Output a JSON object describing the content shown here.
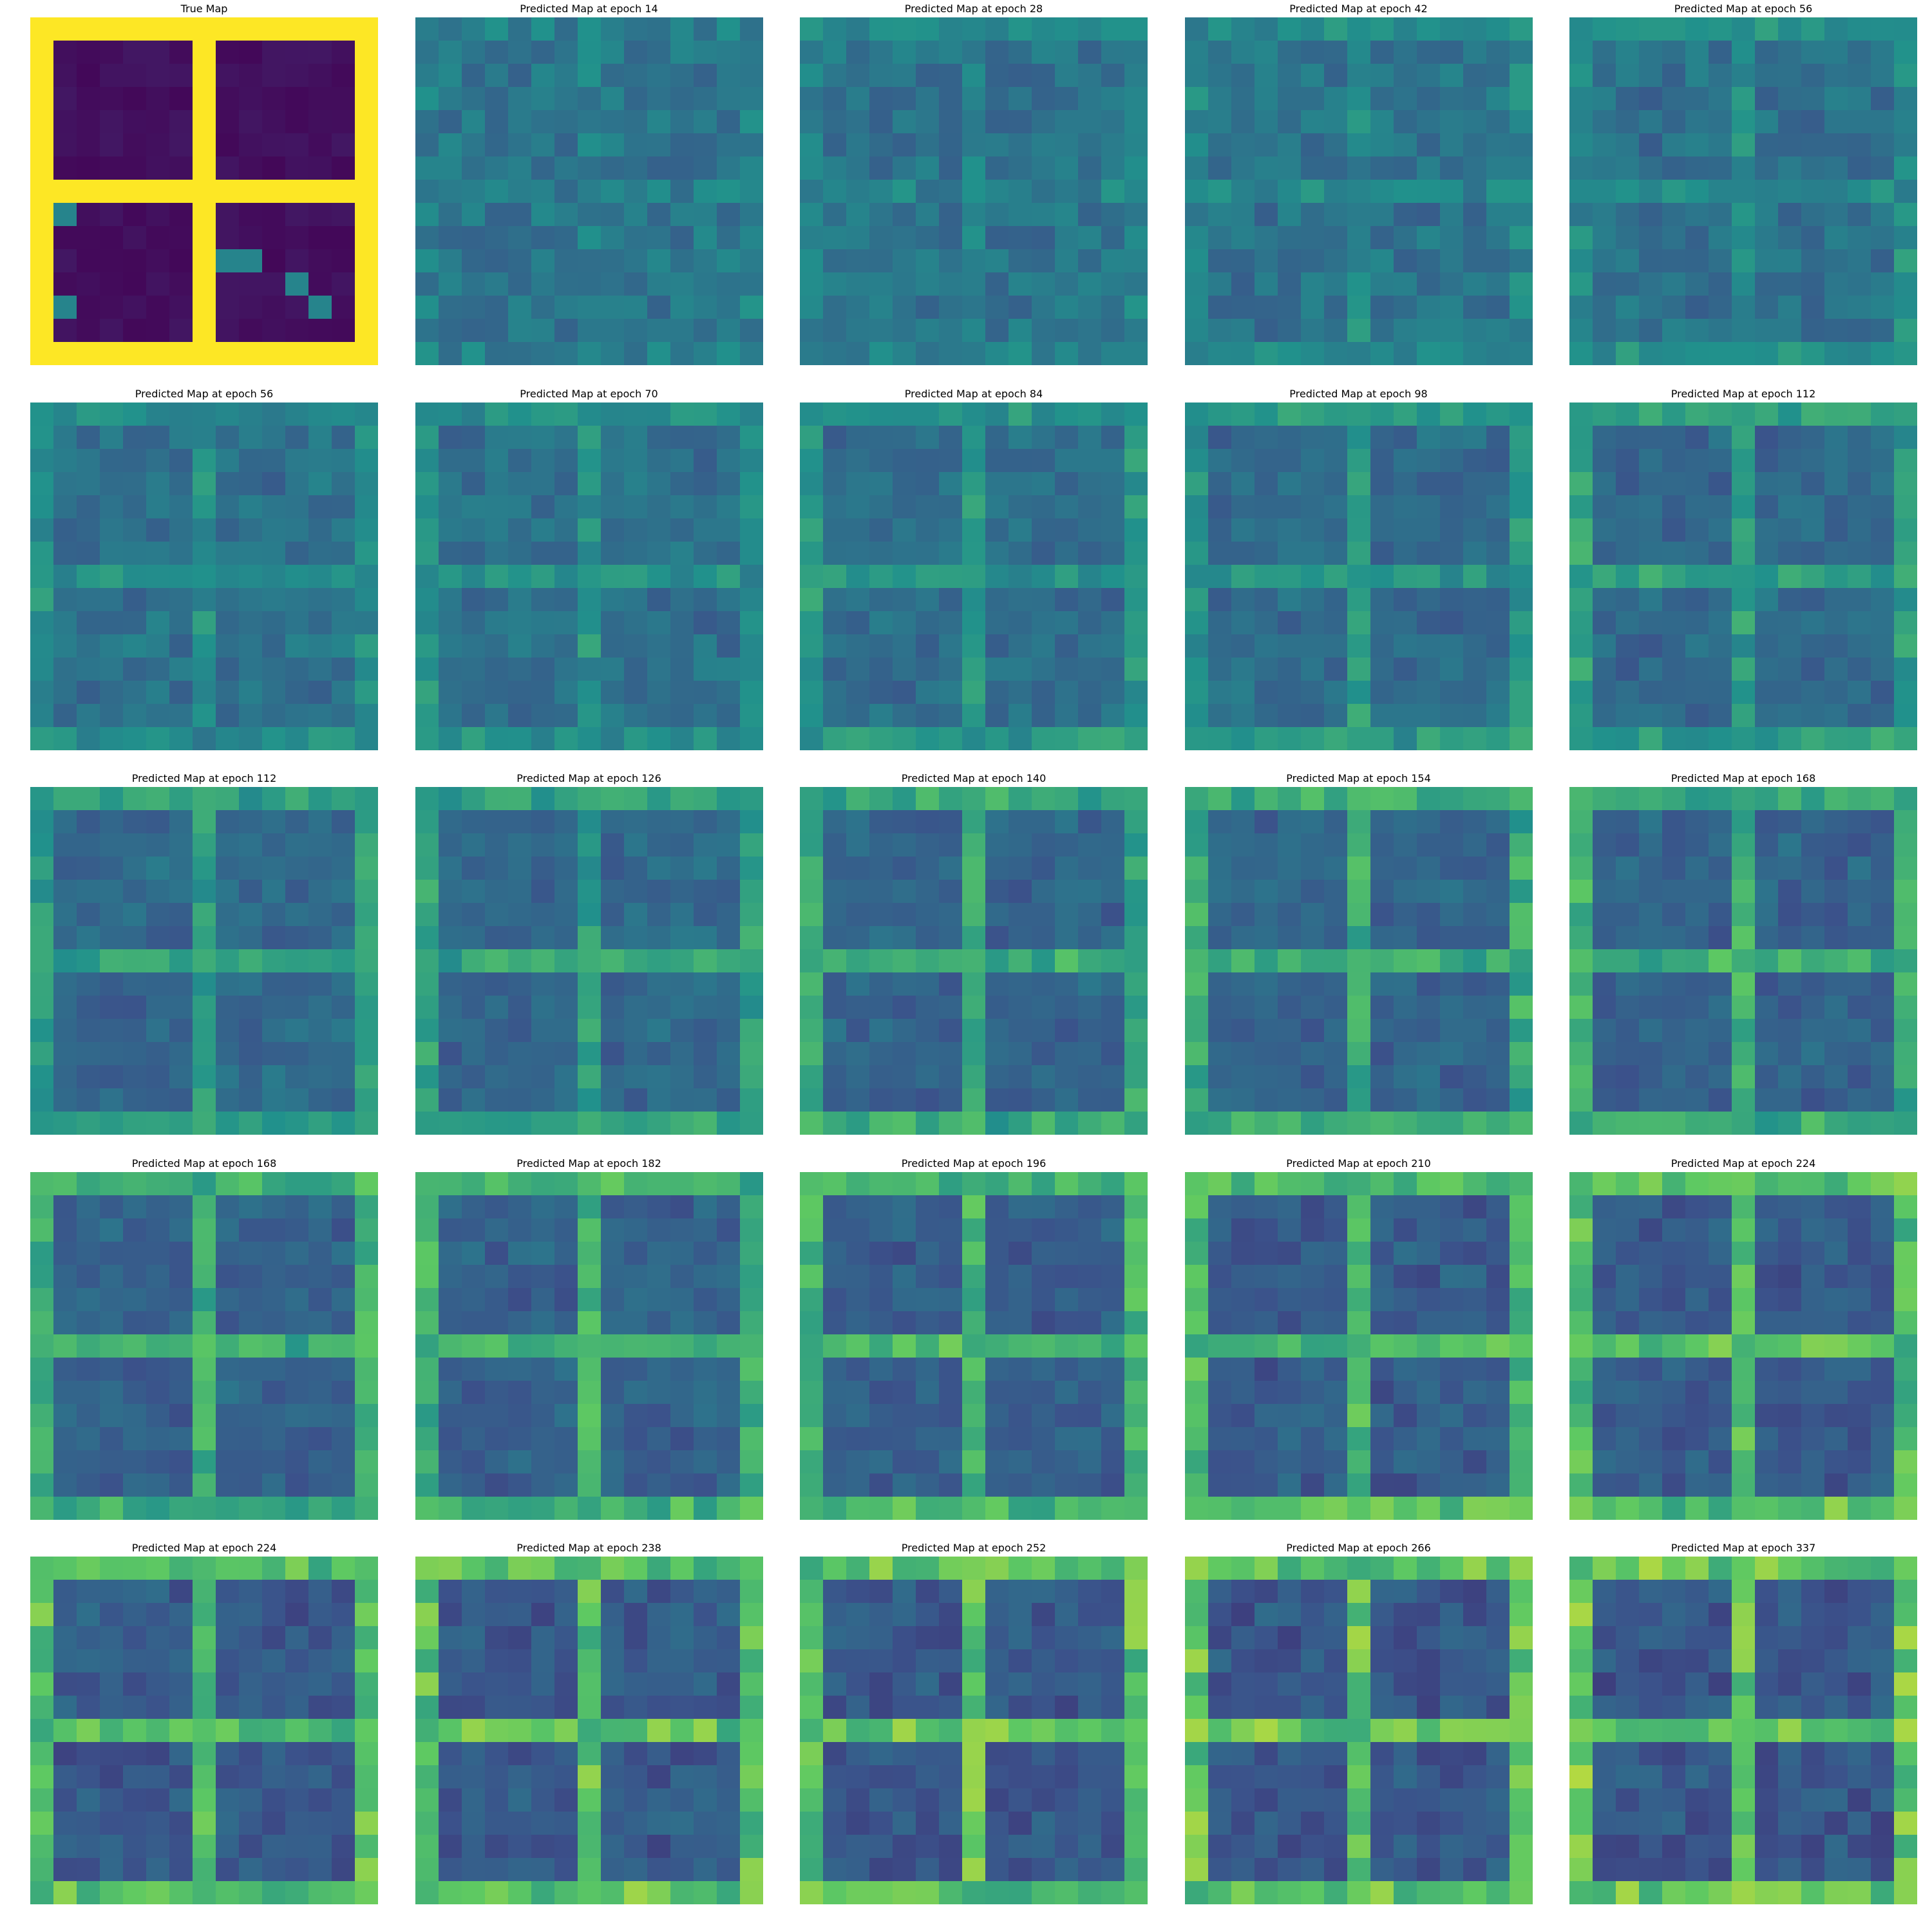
{
  "figure": {
    "layout": {
      "rows": 5,
      "cols": 5
    },
    "colormap": "viridis",
    "colormap_stops": [
      "#440154",
      "#3b528b",
      "#21918c",
      "#5ec962",
      "#fde725"
    ],
    "grid_size": 15
  },
  "chart_data": [
    {
      "type": "heatmap",
      "title": "True Map",
      "pattern": "true",
      "level": 1.0
    },
    {
      "type": "heatmap",
      "title": "Predicted Map at epoch 14",
      "epoch": 14,
      "pattern": "predicted",
      "level": 0.08
    },
    {
      "type": "heatmap",
      "title": "Predicted Map at epoch 28",
      "epoch": 28,
      "pattern": "predicted",
      "level": 0.13
    },
    {
      "type": "heatmap",
      "title": "Predicted Map at epoch 42",
      "epoch": 42,
      "pattern": "predicted",
      "level": 0.18
    },
    {
      "type": "heatmap",
      "title": "Predicted Map at epoch 56",
      "epoch": 56,
      "pattern": "predicted",
      "level": 0.22
    },
    {
      "type": "heatmap",
      "title": "Predicted Map at epoch 56",
      "epoch": 56,
      "pattern": "predicted",
      "level": 0.23
    },
    {
      "type": "heatmap",
      "title": "Predicted Map at epoch 70",
      "epoch": 70,
      "pattern": "predicted",
      "level": 0.27
    },
    {
      "type": "heatmap",
      "title": "Predicted Map at epoch 84",
      "epoch": 84,
      "pattern": "predicted",
      "level": 0.32
    },
    {
      "type": "heatmap",
      "title": "Predicted Map at epoch 98",
      "epoch": 98,
      "pattern": "predicted",
      "level": 0.37
    },
    {
      "type": "heatmap",
      "title": "Predicted Map at epoch 112",
      "epoch": 112,
      "pattern": "predicted",
      "level": 0.42
    },
    {
      "type": "heatmap",
      "title": "Predicted Map at epoch 112",
      "epoch": 112,
      "pattern": "predicted",
      "level": 0.43
    },
    {
      "type": "heatmap",
      "title": "Predicted Map at epoch 126",
      "epoch": 126,
      "pattern": "predicted",
      "level": 0.48
    },
    {
      "type": "heatmap",
      "title": "Predicted Map at epoch 140",
      "epoch": 140,
      "pattern": "predicted",
      "level": 0.55
    },
    {
      "type": "heatmap",
      "title": "Predicted Map at epoch 154",
      "epoch": 154,
      "pattern": "predicted",
      "level": 0.58
    },
    {
      "type": "heatmap",
      "title": "Predicted Map at epoch 168",
      "epoch": 168,
      "pattern": "predicted",
      "level": 0.61
    },
    {
      "type": "heatmap",
      "title": "Predicted Map at epoch 168",
      "epoch": 168,
      "pattern": "predicted",
      "level": 0.62
    },
    {
      "type": "heatmap",
      "title": "Predicted Map at epoch 182",
      "epoch": 182,
      "pattern": "predicted",
      "level": 0.66
    },
    {
      "type": "heatmap",
      "title": "Predicted Map at epoch 196",
      "epoch": 196,
      "pattern": "predicted",
      "level": 0.7
    },
    {
      "type": "heatmap",
      "title": "Predicted Map at epoch 210",
      "epoch": 210,
      "pattern": "predicted",
      "level": 0.78
    },
    {
      "type": "heatmap",
      "title": "Predicted Map at epoch 224",
      "epoch": 224,
      "pattern": "predicted",
      "level": 0.82
    },
    {
      "type": "heatmap",
      "title": "Predicted Map at epoch 224",
      "epoch": 224,
      "pattern": "predicted",
      "level": 0.83
    },
    {
      "type": "heatmap",
      "title": "Predicted Map at epoch 238",
      "epoch": 238,
      "pattern": "predicted",
      "level": 0.86
    },
    {
      "type": "heatmap",
      "title": "Predicted Map at epoch 252",
      "epoch": 252,
      "pattern": "predicted",
      "level": 0.88
    },
    {
      "type": "heatmap",
      "title": "Predicted Map at epoch 266",
      "epoch": 266,
      "pattern": "predicted",
      "level": 0.9
    },
    {
      "type": "heatmap",
      "title": "Predicted Map at epoch 337",
      "epoch": 337,
      "pattern": "predicted",
      "level": 0.93
    }
  ]
}
